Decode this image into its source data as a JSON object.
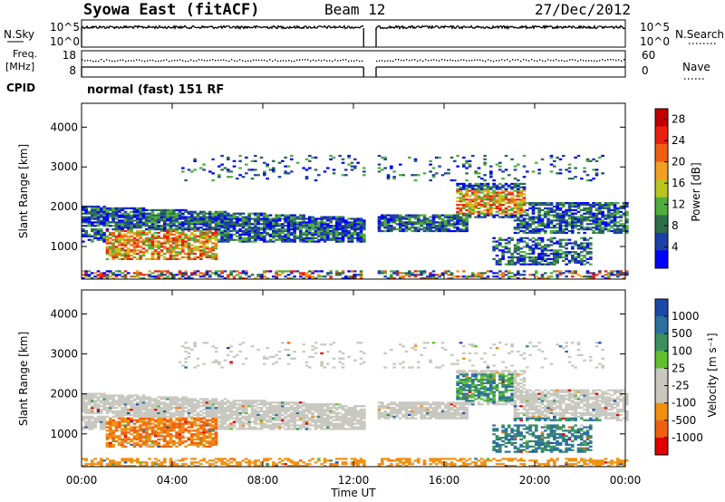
{
  "header": {
    "station": "Syowa East (fitACF)",
    "beam": "Beam 12",
    "date": "27/Dec/2012"
  },
  "labels": {
    "nsky": "N.Sky",
    "nsearch": "N.Search",
    "freq": "Freq.",
    "mhz": "[MHz]",
    "nave": "Nave",
    "cpid": "CPID",
    "cpid_value": "normal (fast) 151 RF",
    "xlabel": "Time UT"
  },
  "colors": {
    "power": [
      "#0000ff",
      "#1c3fa8",
      "#2e6e4a",
      "#4fae3c",
      "#b9c61c",
      "#f0a020",
      "#f06010",
      "#e82010",
      "#c00000"
    ],
    "velocity": [
      "#e00000",
      "#f06010",
      "#f09010",
      "#c8c8c0",
      "#c8c8c0",
      "#60c030",
      "#3a9060",
      "#2a70a0",
      "#1a4aa8"
    ]
  },
  "chart_data": [
    {
      "type": "line",
      "name": "noise-panel",
      "left_ticks": [
        "10^5",
        "10^0"
      ],
      "right_ticks": [
        "10^5",
        "10^0"
      ],
      "gap_hours": [
        12.45,
        13.0
      ]
    },
    {
      "type": "line",
      "name": "freq-nave-panel",
      "left_ticks": [
        "18",
        "8"
      ],
      "right_ticks": [
        "60",
        "0"
      ],
      "gap_hours": [
        12.45,
        13.0
      ]
    },
    {
      "type": "heatmap",
      "name": "power-panel",
      "ylabel": "Slant Range [km]",
      "ylim": [
        180,
        4600
      ],
      "yticks": [
        1000,
        2000,
        3000,
        4000
      ],
      "xlim": [
        0,
        24
      ],
      "colorbar": {
        "label": "Power [dB]",
        "ticks": [
          "4",
          "8",
          "12",
          "16",
          "20",
          "24",
          "28"
        ],
        "range": [
          0,
          30
        ]
      }
    },
    {
      "type": "heatmap",
      "name": "velocity-panel",
      "ylabel": "Slant Range [km]",
      "ylim": [
        180,
        4600
      ],
      "yticks": [
        1000,
        2000,
        3000,
        4000
      ],
      "xlim": [
        0,
        24
      ],
      "xticks": [
        "00:00",
        "04:00",
        "08:00",
        "12:00",
        "16:00",
        "20:00",
        "00:00"
      ],
      "xlabel": "Time UT",
      "colorbar": {
        "label": "Velocity [m s⁻¹]",
        "ticks": [
          "1000",
          "500",
          "100",
          "25",
          "-25",
          "-100",
          "-500",
          "-1000"
        ]
      }
    }
  ]
}
